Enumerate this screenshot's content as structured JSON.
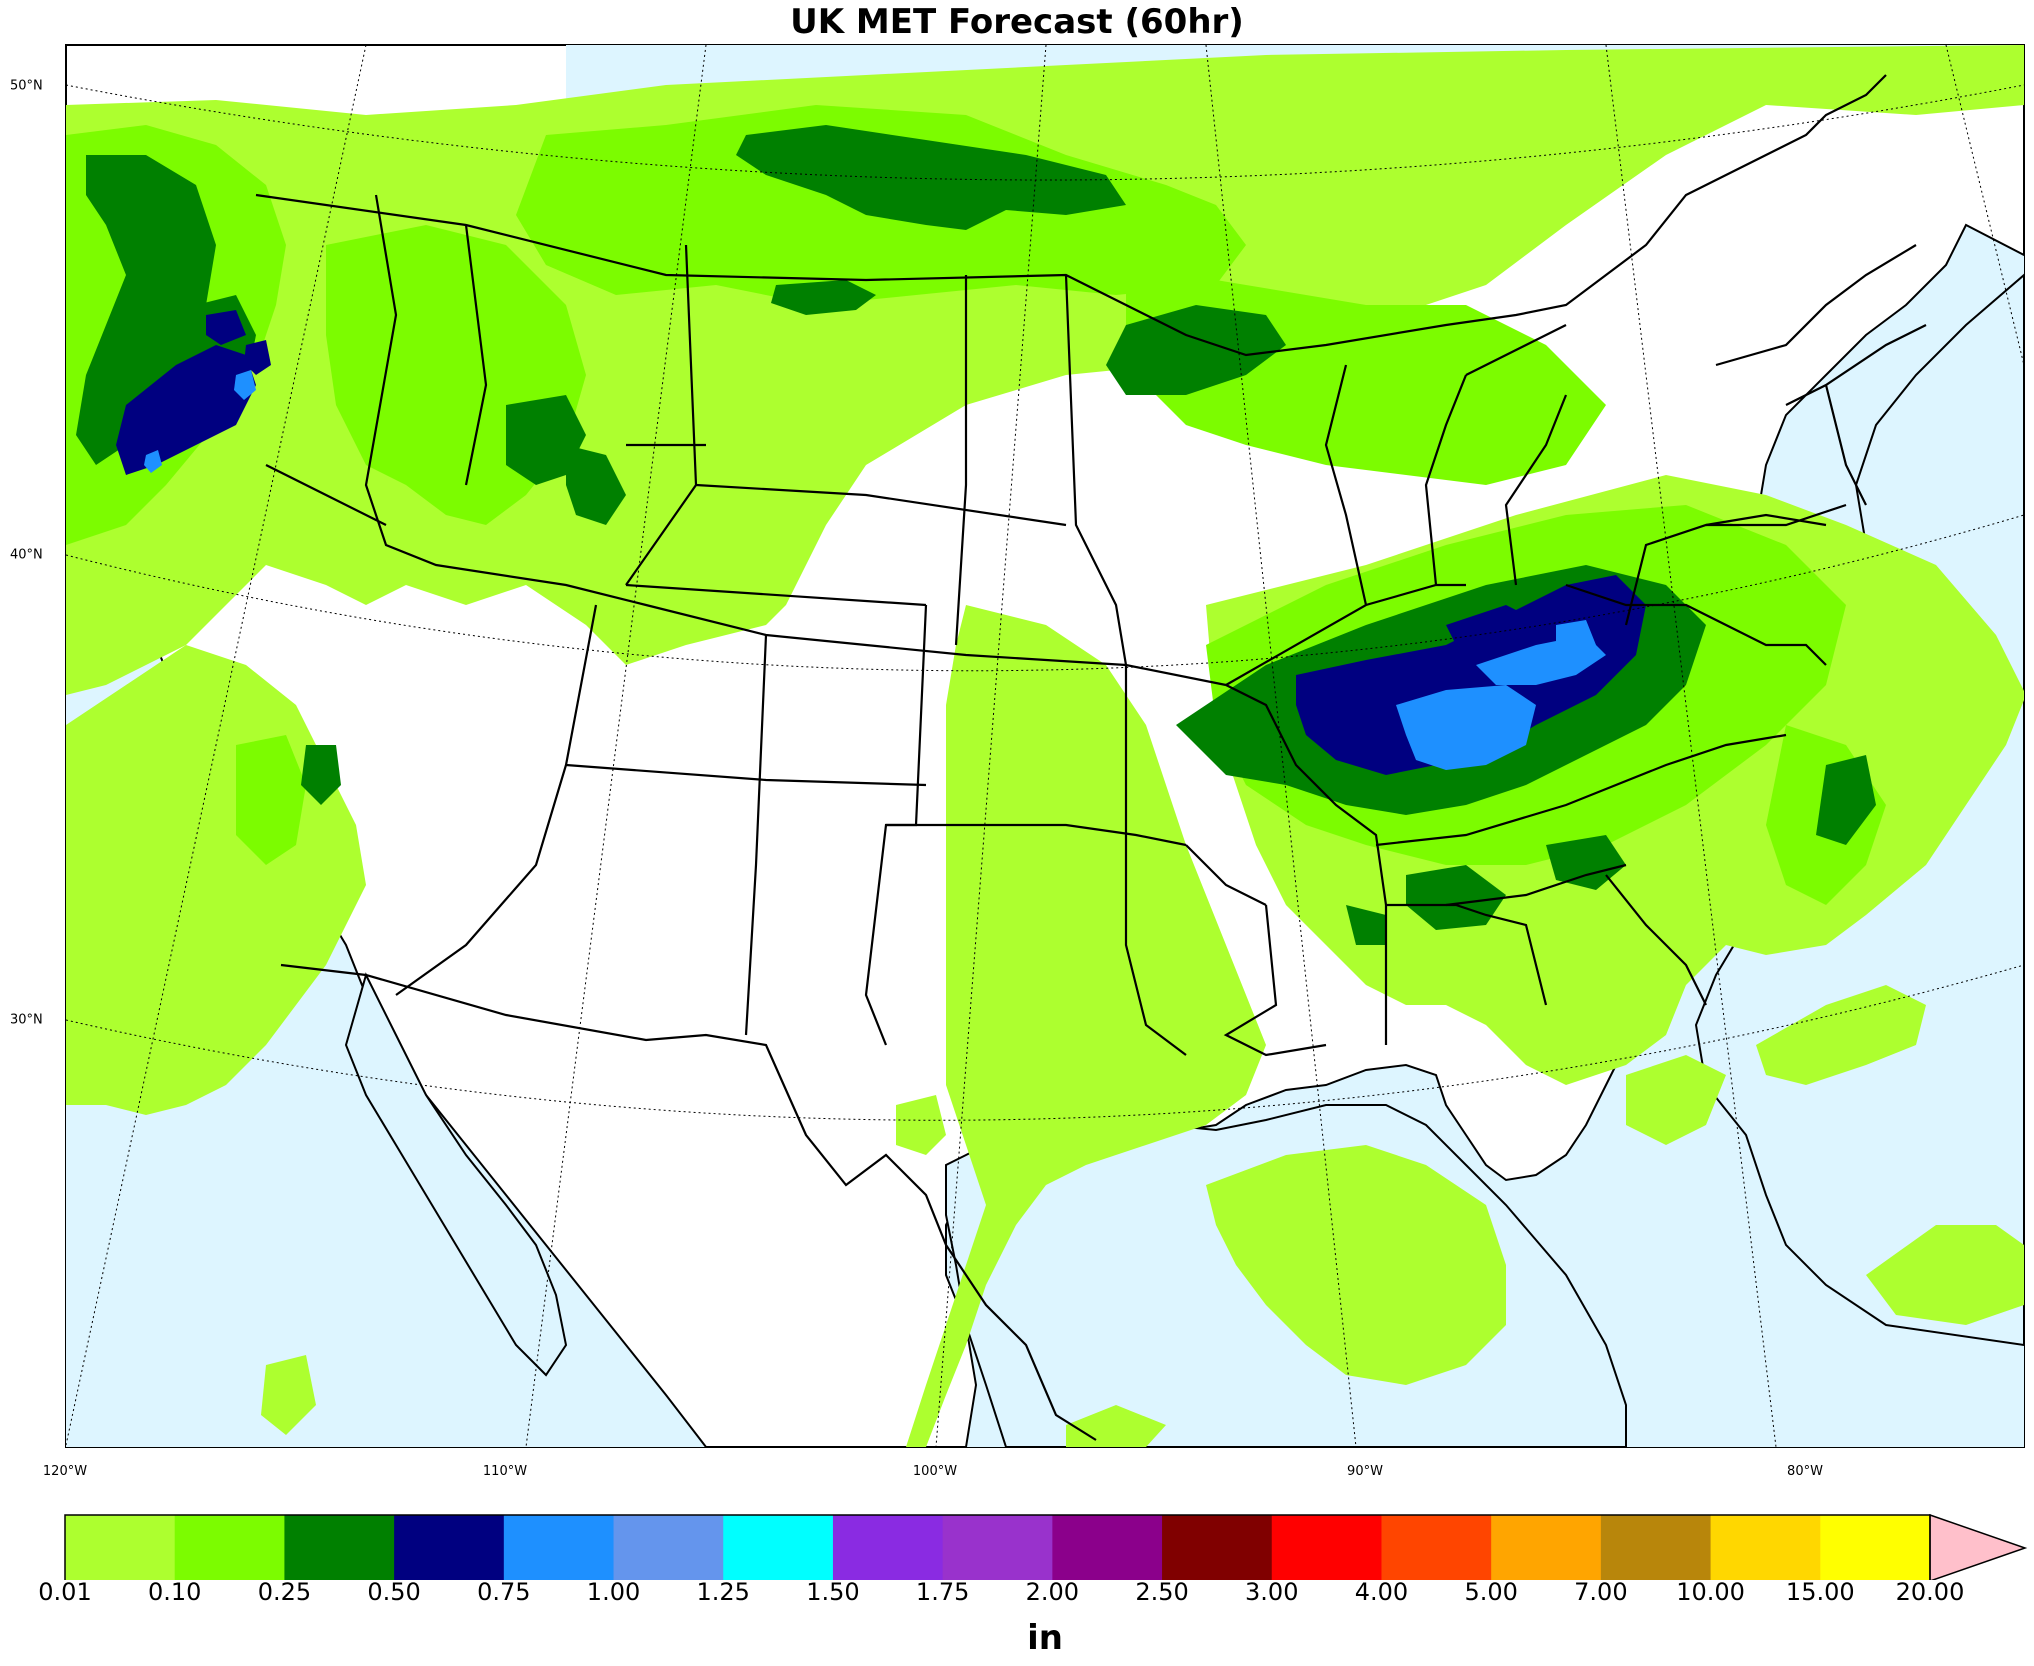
{
  "title": "UK MET Forecast (60hr)",
  "units": "in",
  "lat_labels": [
    "50°N",
    "40°N",
    "30°N"
  ],
  "lon_labels": [
    "120°W",
    "110°W",
    "100°W",
    "90°W",
    "80°W"
  ],
  "colorbar": {
    "ticks": [
      "0.01",
      "0.10",
      "0.25",
      "0.50",
      "0.75",
      "1.00",
      "1.25",
      "1.50",
      "1.75",
      "2.00",
      "2.50",
      "3.00",
      "4.00",
      "5.00",
      "7.00",
      "10.00",
      "15.00",
      "20.00"
    ],
    "colors": [
      "#adff2f",
      "#7cfc00",
      "#008000",
      "#000080",
      "#1e90ff",
      "#6495ed",
      "#00ffff",
      "#8a2be2",
      "#9932cc",
      "#8b008b",
      "#800000",
      "#ff0000",
      "#ff4500",
      "#ffa500",
      "#b8860b",
      "#ffd700",
      "#ffff00"
    ],
    "extend_color": "#ffc0cb"
  },
  "colors": {
    "ocean": "#ddf5ff",
    "land": "#ffffff"
  }
}
